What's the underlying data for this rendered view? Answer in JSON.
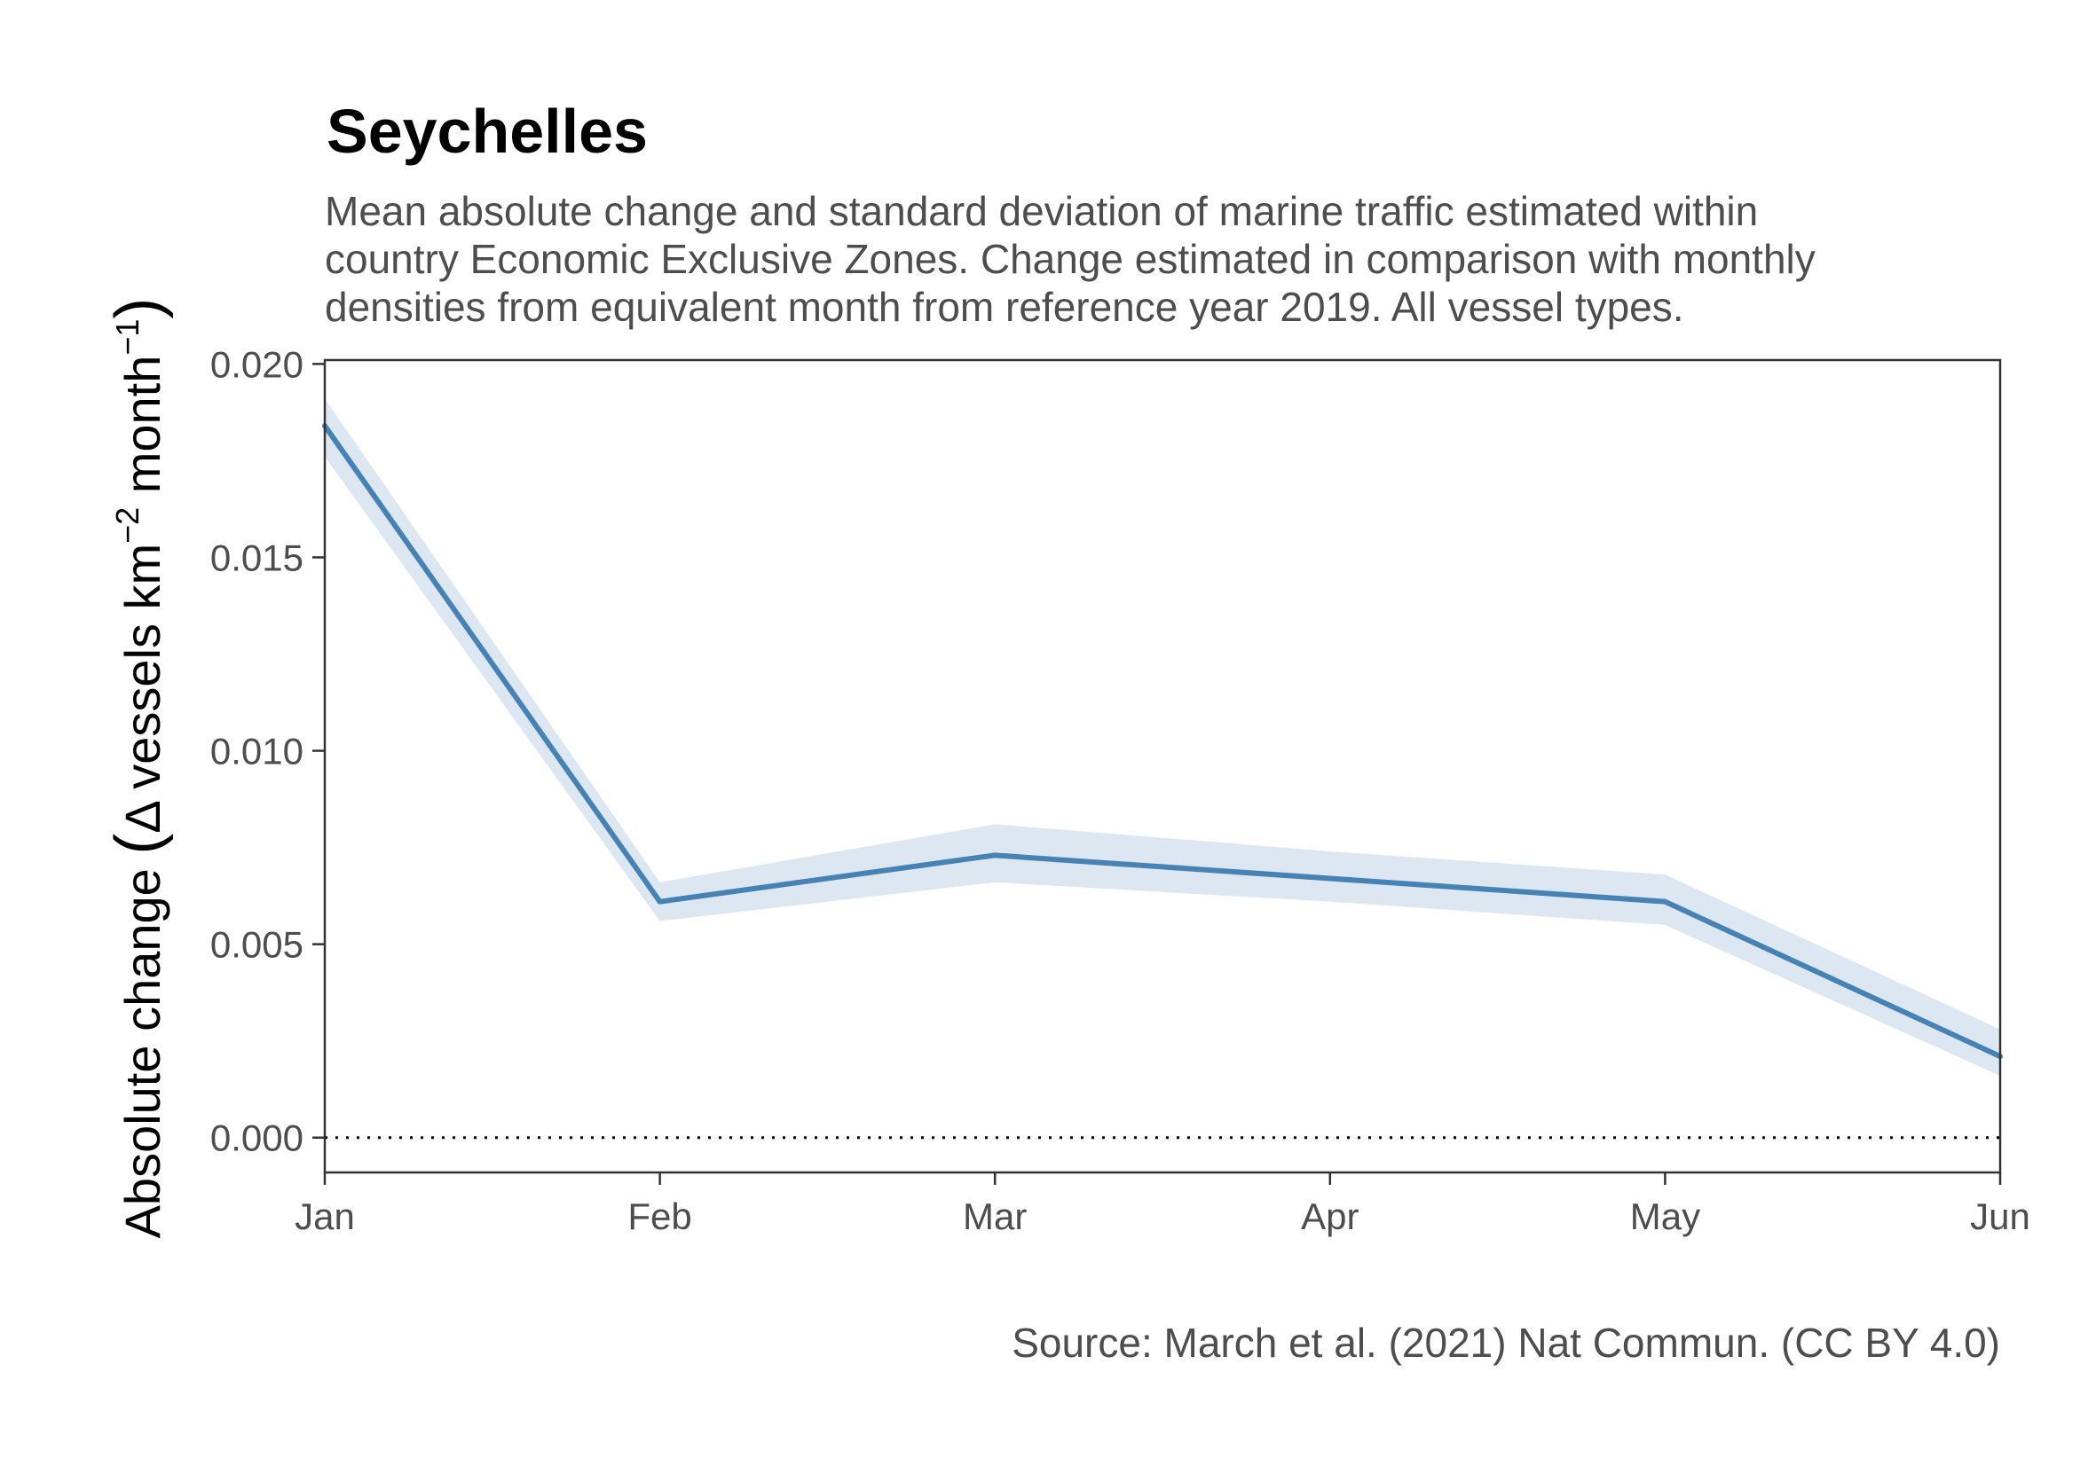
{
  "chart_data": {
    "type": "line",
    "title": "Seychelles",
    "subtitle": [
      "Mean absolute change and standard deviation of marine traffic estimated within",
      "country Economic Exclusive Zones. Change estimated in comparison with monthly",
      "densities from equivalent month from reference year 2019. All vessel types."
    ],
    "ylabel": {
      "prefix": "Absolute change ",
      "open": "(",
      "inner": "Δ vessels km",
      "sup1": "−2",
      "mid": " month",
      "sup2": "−1",
      "close": ")"
    },
    "xlabel": "",
    "caption": "Source: March et al. (2021) Nat Commun. (CC BY 4.0)",
    "categories": [
      "Jan",
      "Feb",
      "Mar",
      "Apr",
      "May",
      "Jun"
    ],
    "ylim": [
      -0.0009,
      0.0201
    ],
    "yticks": [
      0.0,
      0.005,
      0.01,
      0.015,
      0.02
    ],
    "ytick_labels": [
      "0.000",
      "0.005",
      "0.010",
      "0.015",
      "0.020"
    ],
    "series": [
      {
        "values": [
          0.0184,
          0.0061,
          0.0073,
          0.0067,
          0.0061,
          0.0021
        ],
        "lower": [
          0.0176,
          0.0056,
          0.0066,
          0.0061,
          0.0055,
          0.0016
        ],
        "upper": [
          0.0191,
          0.0066,
          0.0081,
          0.0074,
          0.0068,
          0.0028
        ]
      }
    ],
    "reference_line": {
      "y": 0.0,
      "style": "dotted"
    },
    "grid": false,
    "colors": {
      "line": "#4682b4",
      "band": "#dce7f2",
      "axis": "#333333",
      "reference": "#000000"
    }
  }
}
